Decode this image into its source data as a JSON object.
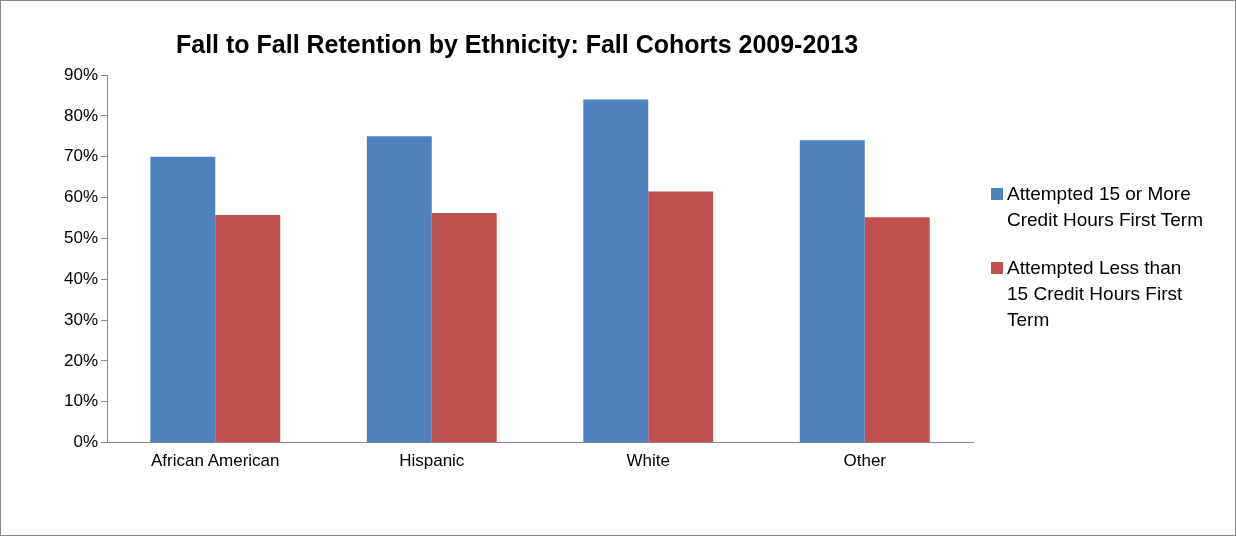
{
  "chart_data": {
    "type": "bar",
    "title": "Fall to Fall Retention by Ethnicity: Fall Cohorts 2009-2013",
    "categories": [
      "African American",
      "Hispanic",
      "White",
      "Other"
    ],
    "series": [
      {
        "name": "Attempted 15 or More Credit Hours First Term",
        "color": "#4f81bd",
        "values": [
          70,
          75,
          84,
          74
        ]
      },
      {
        "name": "Attempted Less than 15 Credit Hours First Term",
        "color": "#c0504d",
        "values": [
          55.7,
          56.2,
          61.5,
          55.2
        ]
      }
    ],
    "ylim": [
      0,
      90
    ],
    "yticks": [
      {
        "value": 0,
        "label": "0%"
      },
      {
        "value": 10,
        "label": "10%"
      },
      {
        "value": 20,
        "label": "20%"
      },
      {
        "value": 30,
        "label": "30%"
      },
      {
        "value": 40,
        "label": "40%"
      },
      {
        "value": 50,
        "label": "50%"
      },
      {
        "value": 60,
        "label": "60%"
      },
      {
        "value": 70,
        "label": "70%"
      },
      {
        "value": 80,
        "label": "80%"
      },
      {
        "value": 90,
        "label": "90%"
      }
    ],
    "grid": false,
    "legend": "right"
  }
}
